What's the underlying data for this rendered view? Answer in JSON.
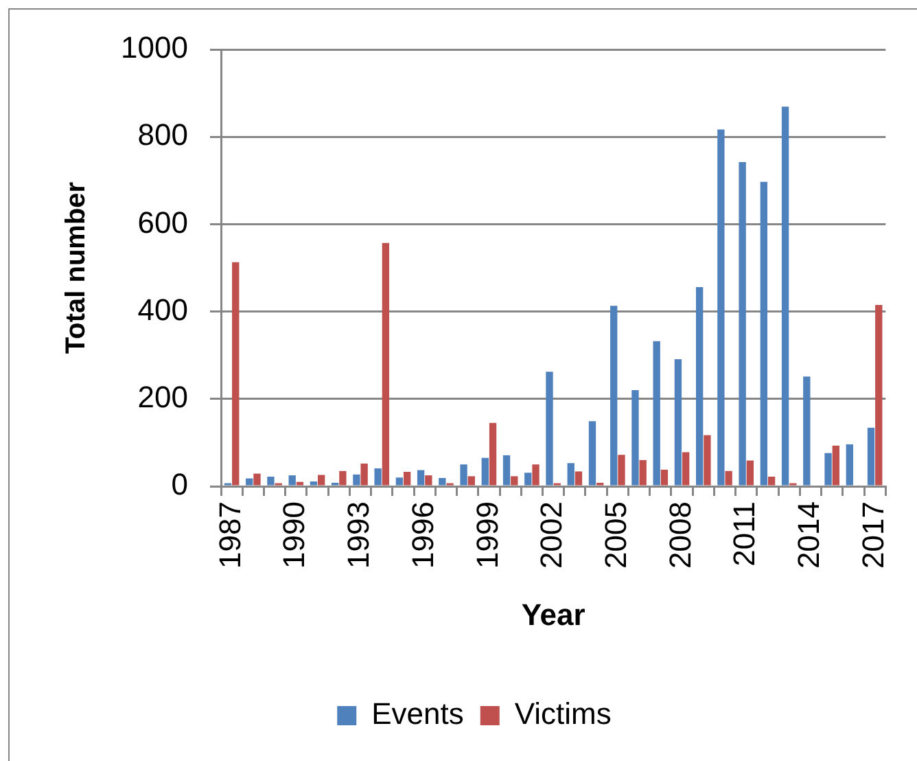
{
  "chart_data": {
    "type": "bar",
    "xlabel": "Year",
    "ylabel": "Total number",
    "categories": [
      "1987",
      null,
      null,
      "1990",
      null,
      null,
      "1993",
      null,
      null,
      "1996",
      null,
      null,
      "1999",
      null,
      null,
      "2002",
      null,
      null,
      "2005",
      null,
      null,
      "2008",
      null,
      null,
      "2011",
      null,
      null,
      "2014",
      null,
      null,
      "2017"
    ],
    "series": [
      {
        "name": "Events",
        "color": "#4f81bd",
        "values": [
          7,
          18,
          22,
          25,
          11,
          8,
          27,
          41,
          20,
          37,
          19,
          50,
          65,
          71,
          31,
          262,
          53,
          149,
          413,
          220,
          332,
          291,
          456,
          817,
          742,
          697,
          869,
          251,
          76,
          96,
          134
        ]
      },
      {
        "name": "Victims",
        "color": "#c0504d",
        "values": [
          513,
          29,
          7,
          10,
          26,
          35,
          52,
          557,
          33,
          25,
          7,
          23,
          145,
          23,
          50,
          7,
          34,
          8,
          72,
          60,
          38,
          78,
          117,
          35,
          59,
          22,
          7,
          0,
          93,
          0,
          415
        ]
      }
    ],
    "ylim": [
      0,
      1000
    ],
    "yticks": [
      0,
      200,
      400,
      600,
      800,
      1000
    ],
    "grid": "y",
    "legend": "bottom"
  }
}
